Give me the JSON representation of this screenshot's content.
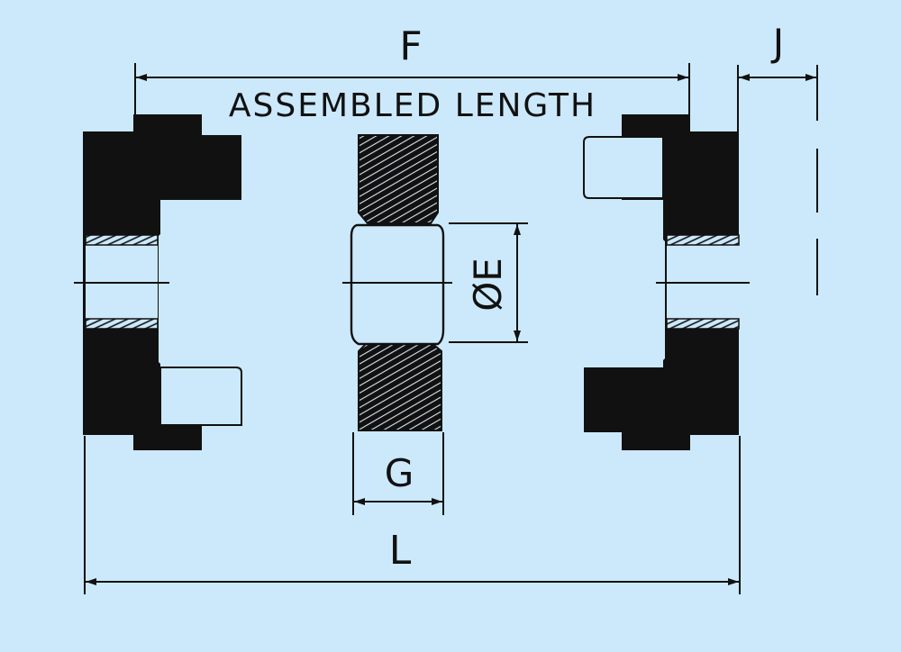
{
  "labels": {
    "F": "F",
    "J": "J",
    "assembled_length": "ASSEMBLED LENGTH",
    "diameter_E": "ØE",
    "G": "G",
    "L": "L"
  },
  "colors": {
    "background": "#cbe9fb",
    "ink": "#111111",
    "thread_highlight": "#d8e8f0"
  }
}
